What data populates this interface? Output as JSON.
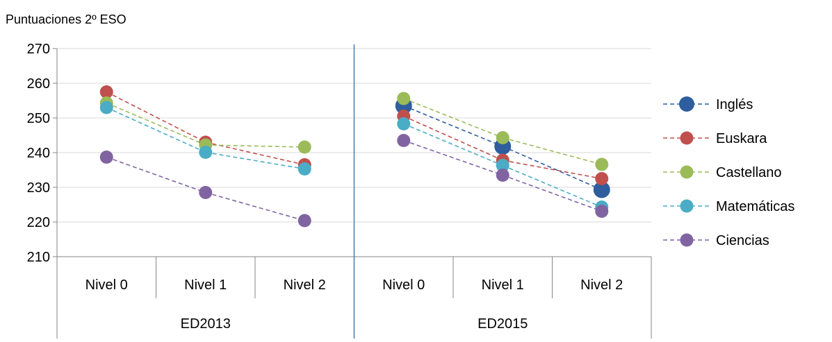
{
  "chart_data": {
    "type": "line",
    "title": "Puntuaciones 2º ESO",
    "xlabel": "",
    "ylabel": "",
    "ylim": [
      210,
      270
    ],
    "yticks": [
      210,
      220,
      230,
      240,
      250,
      260,
      270
    ],
    "grid": true,
    "legend_position": "right",
    "groups": [
      {
        "label": "ED2013",
        "categories": [
          "Nivel 0",
          "Nivel 1",
          "Nivel 2"
        ]
      },
      {
        "label": "ED2015",
        "categories": [
          "Nivel 0",
          "Nivel 1",
          "Nivel 2"
        ]
      }
    ],
    "series": [
      {
        "name": "Inglés",
        "color": "#2e5e9e",
        "size": "large",
        "values": [
          null,
          null,
          null,
          253.5,
          241.8,
          229.3
        ]
      },
      {
        "name": "Euskara",
        "color": "#c0504d",
        "size": "normal",
        "values": [
          257.5,
          243.0,
          236.5,
          250.5,
          237.8,
          232.5
        ]
      },
      {
        "name": "Castellano",
        "color": "#9bbb59",
        "size": "normal",
        "values": [
          254.3,
          242.2,
          241.6,
          255.6,
          244.3,
          236.6
        ]
      },
      {
        "name": "Matemáticas",
        "color": "#4bacc6",
        "size": "normal",
        "values": [
          253.0,
          240.1,
          235.3,
          248.3,
          236.3,
          224.3
        ]
      },
      {
        "name": "Ciencias",
        "color": "#8064a2",
        "size": "normal",
        "values": [
          238.7,
          228.5,
          220.4,
          243.5,
          233.5,
          223.1
        ]
      }
    ]
  }
}
